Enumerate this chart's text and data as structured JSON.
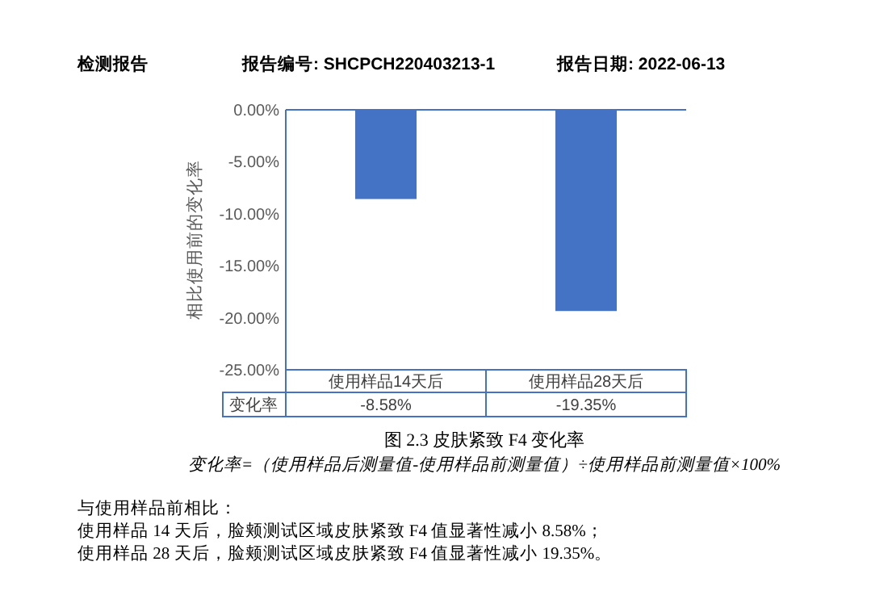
{
  "chart_data": {
    "type": "bar",
    "title": "图 2.3 皮肤紧致 F4 变化率",
    "subtitle": "变化率=（使用样品后测量值-使用样品前测量值）÷使用样品前测量值×100%",
    "ylabel": "相比使用前的变化率",
    "categories": [
      "使用样品14天后",
      "使用样品28天后"
    ],
    "values": [
      -8.58,
      -19.35
    ],
    "color": "#4472c4",
    "value_labels": [
      "-8.58%",
      "-19.35%"
    ],
    "ylim": [
      -25,
      0
    ],
    "yticks": [
      {
        "value": 0,
        "label": "0.00%"
      },
      {
        "value": -5,
        "label": "-5.00%"
      },
      {
        "value": -10,
        "label": "-10.00%"
      },
      {
        "value": -15,
        "label": "-15.00%"
      },
      {
        "value": -20,
        "label": "-20.00%"
      },
      {
        "value": -25,
        "label": "-25.00%"
      }
    ],
    "annotations": [
      "检测报告",
      "报告编号: SHCPCH220403213-1",
      "报告日期: 2022-06-13",
      "变化率",
      "与使用样品前相比：",
      "使用样品 14 天后，脸颊测试区域皮肤紧致 F4 值显著性减小 8.58%；",
      "使用样品 28 天后，脸颊测试区域皮肤紧致 F4 值显著性减小 19.35%。"
    ]
  }
}
